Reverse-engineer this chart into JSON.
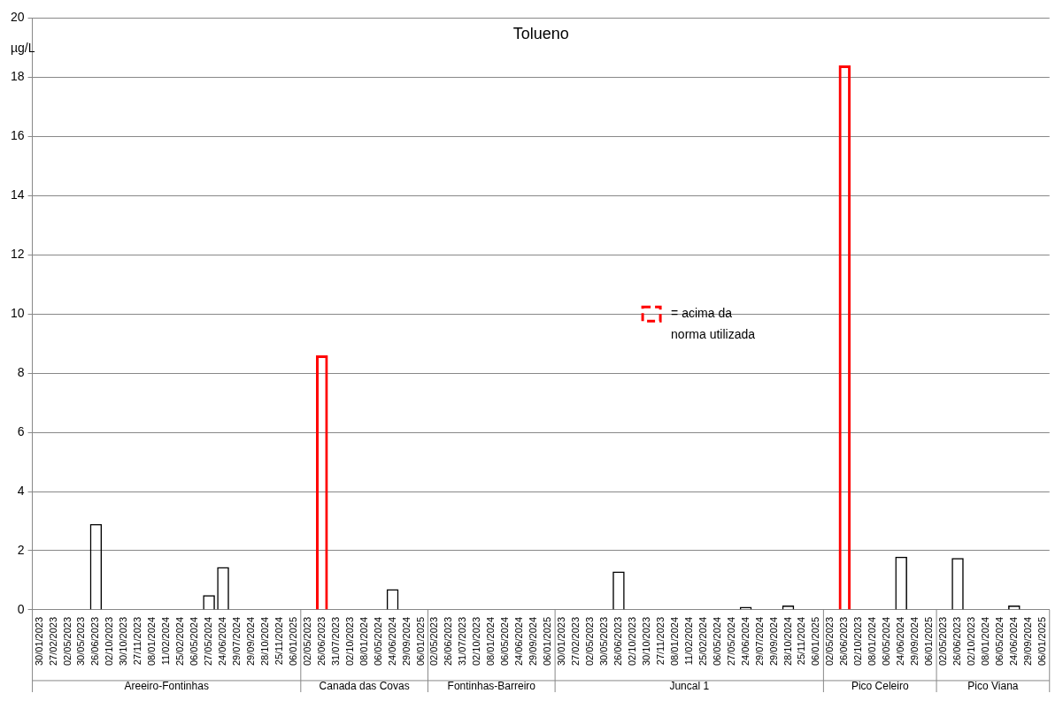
{
  "chart_data": {
    "type": "bar",
    "title": "Tolueno",
    "ylabel": "µg/L",
    "categories": [
      "30/01/2023",
      "27/02/2023",
      "02/05/2023",
      "30/05/2023",
      "26/06/2023",
      "02/10/2023",
      "30/10/2023",
      "27/11/2023",
      "08/01/2024",
      "11/02/2024",
      "25/02/2024",
      "06/05/2024",
      "27/05/2024",
      "24/06/2024",
      "29/07/2024",
      "29/09/2024",
      "28/10/2024",
      "25/11/2024",
      "06/01/2025",
      "02/05/2023",
      "26/06/2023",
      "31/07/2023",
      "02/10/2023",
      "08/01/2024",
      "06/05/2024",
      "24/06/2024",
      "29/09/2024",
      "06/01/2025",
      "02/05/2023",
      "26/06/2023",
      "31/07/2023",
      "02/10/2023",
      "08/01/2024",
      "06/05/2024",
      "24/06/2024",
      "29/09/2024",
      "06/01/2025",
      "30/01/2023",
      "27/02/2023",
      "02/05/2023",
      "30/05/2023",
      "26/06/2023",
      "02/10/2023",
      "30/10/2023",
      "27/11/2023",
      "08/01/2024",
      "11/02/2024",
      "25/02/2024",
      "06/05/2024",
      "27/05/2024",
      "24/06/2024",
      "29/07/2024",
      "29/09/2024",
      "28/10/2024",
      "25/11/2024",
      "06/01/2025",
      "02/05/2023",
      "26/06/2023",
      "02/10/2023",
      "08/01/2024",
      "06/05/2024",
      "24/06/2024",
      "29/09/2024",
      "06/01/2025",
      "02/05/2023",
      "26/06/2023",
      "02/10/2023",
      "08/01/2024",
      "06/05/2024",
      "24/06/2024",
      "29/09/2024",
      "06/01/2025"
    ],
    "series": [
      {
        "color": "#000000",
        "values": [
          null,
          null,
          null,
          null,
          2.9,
          null,
          null,
          null,
          null,
          null,
          null,
          null,
          0.5,
          1.45,
          null,
          null,
          null,
          null,
          null,
          null,
          null,
          null,
          null,
          null,
          null,
          0.7,
          null,
          null,
          null,
          null,
          null,
          null,
          null,
          null,
          null,
          null,
          null,
          null,
          null,
          null,
          null,
          1.3,
          null,
          null,
          null,
          null,
          null,
          null,
          null,
          null,
          0.1,
          null,
          null,
          0.15,
          null,
          null,
          null,
          null,
          null,
          null,
          null,
          1.8,
          null,
          null,
          null,
          1.75,
          null,
          null,
          null,
          0.15,
          null,
          null
        ]
      },
      {
        "name": "= acima da norma utilizada",
        "color": "#ff0000",
        "line_style": "dashed",
        "values": [
          null,
          null,
          null,
          null,
          null,
          null,
          null,
          null,
          null,
          null,
          null,
          null,
          null,
          null,
          null,
          null,
          null,
          null,
          null,
          null,
          8.6,
          null,
          null,
          null,
          null,
          null,
          null,
          null,
          null,
          null,
          null,
          null,
          null,
          null,
          null,
          null,
          null,
          null,
          null,
          null,
          null,
          null,
          null,
          null,
          null,
          null,
          null,
          null,
          null,
          null,
          null,
          null,
          null,
          null,
          null,
          null,
          null,
          18.4,
          null,
          null,
          null,
          null,
          null,
          null,
          null,
          null,
          null,
          null,
          null,
          null,
          null,
          null
        ]
      }
    ],
    "stacked": true,
    "ylim": [
      0,
      20
    ],
    "yticks": [
      0,
      2,
      4,
      6,
      8,
      10,
      12,
      14,
      16,
      18,
      20
    ],
    "grid": "y",
    "legend": "center",
    "annotations": [
      "Areeiro-Fontinhas",
      "Canada das Covas",
      "Fontinhas-Barreiro",
      "Juncal 1",
      "Pico Celeiro",
      "Pico Viana"
    ]
  }
}
